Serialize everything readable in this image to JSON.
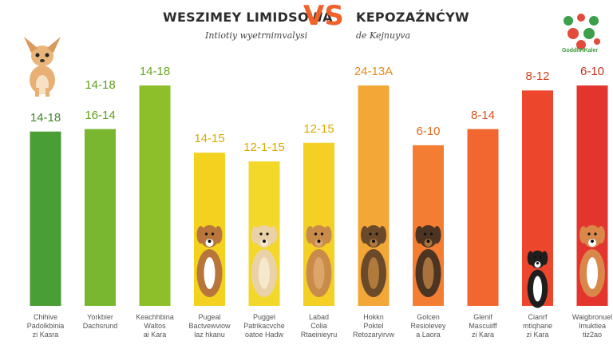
{
  "header": {
    "title_left": "WESZIMEY LIMIDSOWA",
    "vs_text": "VS",
    "title_right": "KEPOZAŹNĆYW",
    "subtitle_left": "Intiotiy wyetrnimvalysi",
    "subtitle_right": "de Kejnuyva"
  },
  "logo": {
    "text": "GoddhHKaler",
    "icon": "paw-cluster-icon"
  },
  "colors": {
    "vs": "#f0622a",
    "title": "#2d2d2d"
  },
  "chart_data": {
    "type": "bar",
    "categories": [
      [
        "Chihive",
        "Padolkbinia",
        "zi Kasra"
      ],
      [
        "Yorkbier",
        "Dachsrund",
        ""
      ],
      [
        "Keachhbina",
        "Waltos",
        "ai Kara"
      ],
      [
        "Pugeal",
        "Bactvewviow",
        "laz hkanu"
      ],
      [
        "Puggel",
        "Patrikacvche",
        "oatoe Hadw"
      ],
      [
        "Labad",
        "Colia",
        "Rtaeinieyru"
      ],
      [
        "Hokkn",
        "Poktel",
        "Retozaryirvw"
      ],
      [
        "Golcen",
        "Resiolevey",
        "a Laora"
      ],
      [
        "Glenif",
        "Mascuiiff",
        "zi Kara"
      ],
      [
        "Cianrf",
        "mtiqhane",
        "zi Kara"
      ],
      [
        "Waigbronuel",
        "Imuktiea",
        "tiz2ao"
      ]
    ],
    "value_labels": [
      "14-18",
      "16-14",
      "14-18",
      "14-15",
      "12-1-15",
      "12-15",
      "24-13A",
      "6-10",
      "8-14",
      "8-12",
      "6-10"
    ],
    "extra_labels": [
      {
        "bar": 1,
        "text": "14-18"
      }
    ],
    "values": [
      14,
      14.2,
      17.7,
      12.3,
      11.6,
      13.1,
      17.7,
      12.9,
      14.2,
      17.3,
      17.7
    ],
    "ylim": [
      0,
      22
    ],
    "bar_colors": [
      "#4a9e36",
      "#7ab730",
      "#8dbf2a",
      "#f2d21e",
      "#f3d82a",
      "#f4cf24",
      "#f2a736",
      "#f27d33",
      "#f1672f",
      "#ec462d",
      "#e3352d"
    ],
    "label_colors": [
      "#3f8a28",
      "#5f9e1f",
      "#6aa52a",
      "#d9a900",
      "#d9a900",
      "#d9a900",
      "#e38a1c",
      "#e06a1c",
      "#d9541d",
      "#d2401e",
      "#c8301f"
    ],
    "dogs": [
      "beagle-icon",
      "cocker-icon",
      "labrador-icon",
      "shepherd-icon",
      "shepherd-icon",
      "boston-icon",
      "shiba-icon"
    ],
    "grid": false,
    "legend": "none"
  }
}
